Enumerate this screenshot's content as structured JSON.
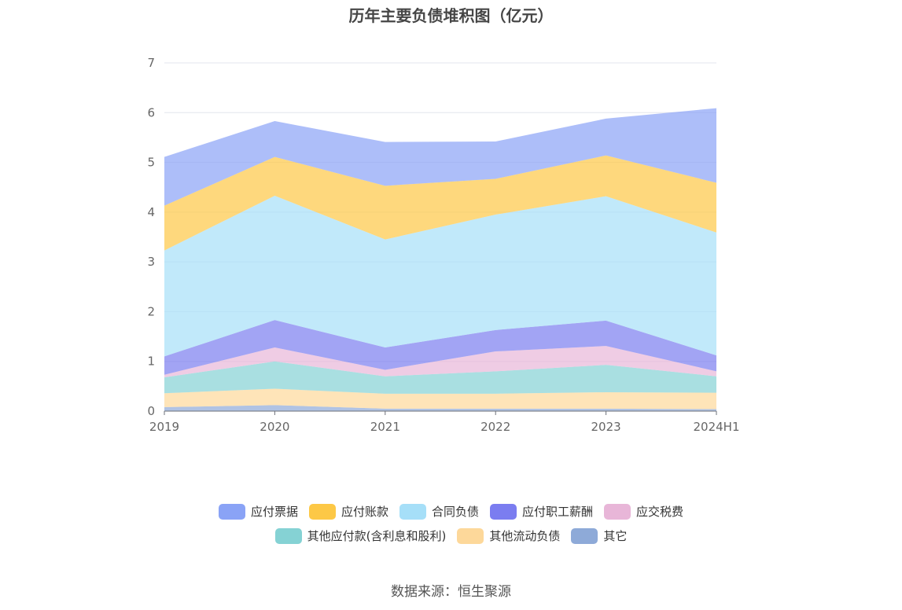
{
  "title": "历年主要负债堆积图（亿元）",
  "source": "数据来源：恒生聚源",
  "chart_data": {
    "type": "area",
    "stacked": true,
    "categories": [
      "2019",
      "2020",
      "2021",
      "2022",
      "2023",
      "2024H1"
    ],
    "ylim": [
      0,
      7
    ],
    "yticks": [
      "0",
      "1",
      "2",
      "3",
      "4",
      "5",
      "6",
      "7"
    ],
    "grid": true,
    "legend_position": "bottom",
    "series": [
      {
        "name": "其它",
        "color": "#8eaad8",
        "values": [
          0.08,
          0.12,
          0.05,
          0.05,
          0.05,
          0.04
        ]
      },
      {
        "name": "其他流动负债",
        "color": "#fdd89a",
        "values": [
          0.28,
          0.33,
          0.3,
          0.3,
          0.33,
          0.33
        ]
      },
      {
        "name": "其他应付款(含利息和股利)",
        "color": "#85d2d4",
        "values": [
          0.32,
          0.55,
          0.35,
          0.45,
          0.55,
          0.33
        ]
      },
      {
        "name": "应交税费",
        "color": "#e8b6d8",
        "values": [
          0.05,
          0.28,
          0.13,
          0.4,
          0.38,
          0.1
        ]
      },
      {
        "name": "应付职工薪酬",
        "color": "#7b7df0",
        "values": [
          0.37,
          0.55,
          0.45,
          0.43,
          0.51,
          0.32
        ]
      },
      {
        "name": "合同负债",
        "color": "#a6dff8",
        "values": [
          2.13,
          2.5,
          2.17,
          2.32,
          2.5,
          2.47
        ]
      },
      {
        "name": "应付账款",
        "color": "#fdc846",
        "values": [
          0.9,
          0.78,
          1.08,
          0.72,
          0.82,
          1.0
        ]
      },
      {
        "name": "应付票据",
        "color": "#8aa3f6",
        "values": [
          0.98,
          0.72,
          0.88,
          0.75,
          0.74,
          1.5
        ]
      }
    ]
  },
  "legend": {
    "rows": [
      [
        "应付票据",
        "应付账款",
        "合同负债",
        "应付职工薪酬",
        "应交税费"
      ],
      [
        "其他应付款(含利息和股利)",
        "其他流动负债",
        "其它"
      ]
    ]
  }
}
